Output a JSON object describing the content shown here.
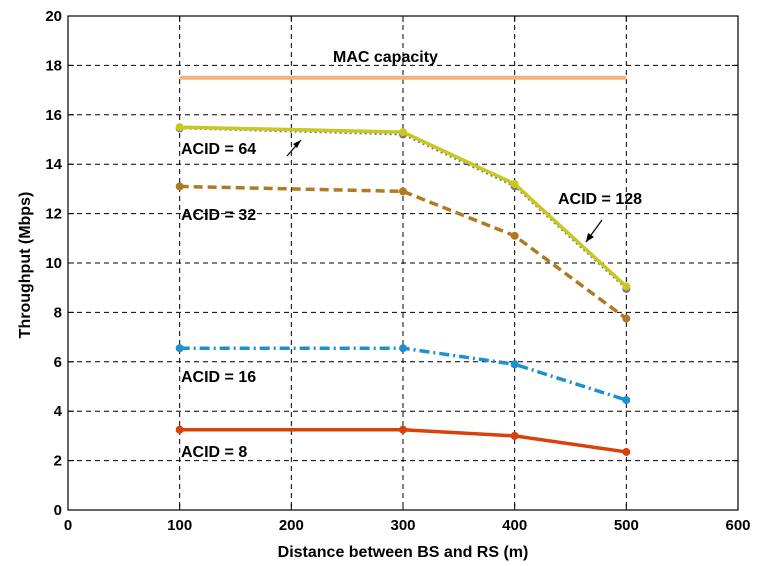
{
  "chart_data": {
    "type": "line",
    "title": "",
    "xlabel": "Distance between BS and RS (m)",
    "ylabel": "Throughput (Mbps)",
    "xlim": [
      0,
      600
    ],
    "ylim": [
      0,
      20
    ],
    "xticks": [
      0,
      100,
      200,
      300,
      400,
      500,
      600
    ],
    "yticks": [
      0,
      2,
      4,
      6,
      8,
      10,
      12,
      14,
      16,
      18,
      20
    ],
    "grid": true,
    "legend": "none",
    "mac_capacity": {
      "label": "MAC capacity",
      "value": 17.5,
      "x_range": [
        100,
        500
      ],
      "color": "#f5b27a"
    },
    "x": [
      100,
      300,
      400,
      500
    ],
    "series": [
      {
        "name": "ACID = 8",
        "values": [
          3.25,
          3.25,
          3.0,
          2.35
        ],
        "color": "#d9400a",
        "style": "solid"
      },
      {
        "name": "ACID = 16",
        "values": [
          6.55,
          6.55,
          5.9,
          4.45
        ],
        "color": "#1e8fcf",
        "style": "dashdot"
      },
      {
        "name": "ACID = 32",
        "values": [
          13.1,
          12.9,
          11.1,
          7.75
        ],
        "color": "#b07a22",
        "style": "dashed"
      },
      {
        "name": "ACID = 64",
        "values": [
          15.45,
          15.2,
          13.1,
          8.95
        ],
        "color": "#7a7a7a",
        "style": "dotted"
      },
      {
        "name": "ACID = 128",
        "values": [
          15.5,
          15.3,
          13.2,
          9.05
        ],
        "color": "#c8c81e",
        "style": "solid"
      }
    ],
    "annotations": {
      "acid8": "ACID = 8",
      "acid16": "ACID = 16",
      "acid32": "ACID = 32",
      "acid64": "ACID = 64",
      "acid128": "ACID = 128"
    }
  }
}
